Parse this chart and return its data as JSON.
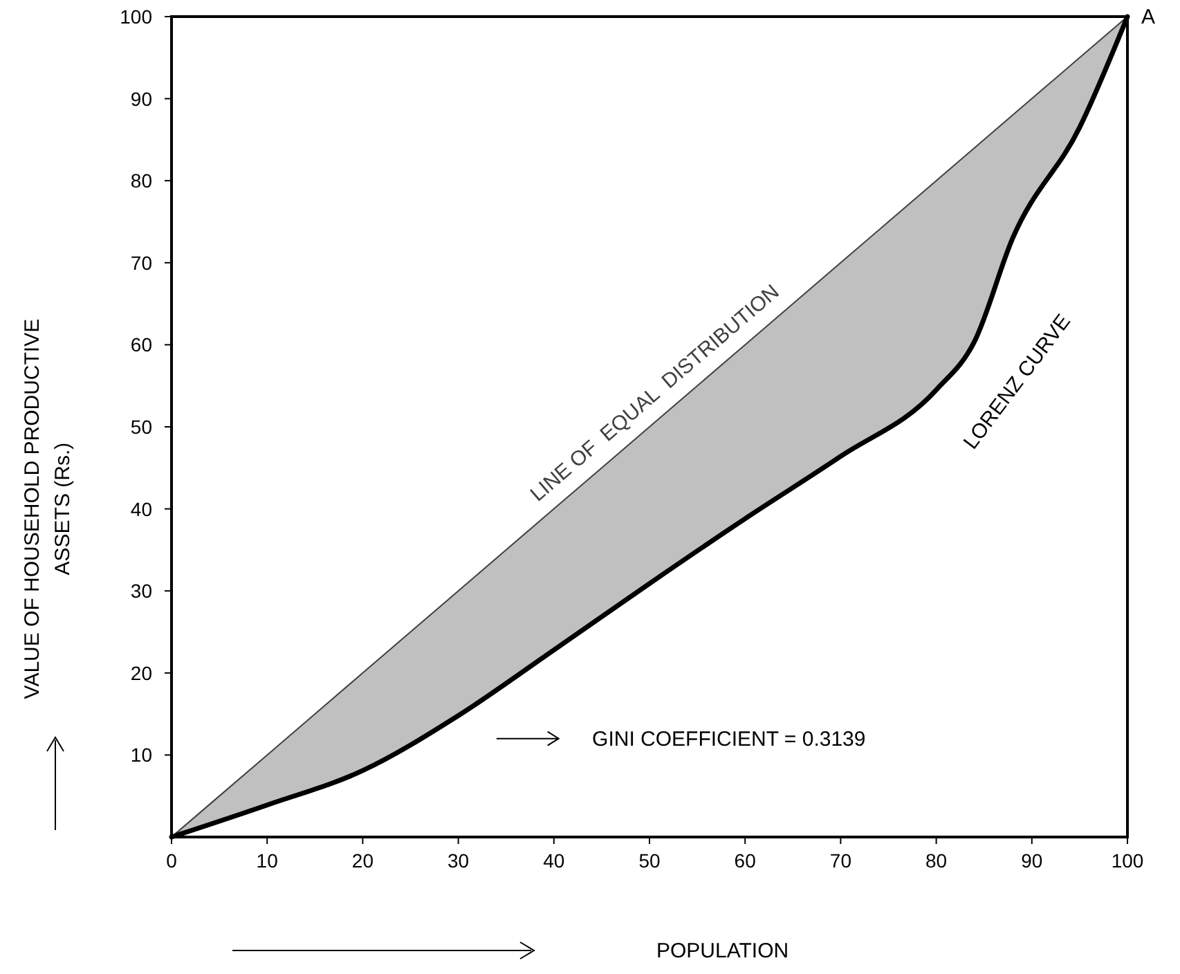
{
  "chart_data": {
    "type": "line",
    "xlabel": "POPULATION",
    "ylabel": "VALUE OF HOUSEHOLD PRODUCTIVE ASSETS (Rs.)",
    "xlim": [
      0,
      100
    ],
    "ylim": [
      0,
      100
    ],
    "xticks": [
      0,
      10,
      20,
      30,
      40,
      50,
      60,
      70,
      80,
      90,
      100
    ],
    "yticks": [
      10,
      20,
      30,
      40,
      50,
      60,
      70,
      80,
      90,
      100
    ],
    "grid": false,
    "marker": "none",
    "line_style": "solid",
    "series": [
      {
        "name": "LINE OF  EQUAL  DISTRIBUTION",
        "color": "#404040",
        "x": [
          0,
          10,
          20,
          30,
          40,
          50,
          60,
          70,
          80,
          84,
          88,
          95,
          100
        ],
        "values": [
          0,
          10,
          20,
          30,
          40,
          50,
          60,
          70,
          80,
          84,
          88,
          95,
          100
        ],
        "lower": [
          0,
          3.9,
          8.1,
          14.8,
          22.8,
          30.9,
          38.8,
          46.4,
          54.5,
          60.4,
          73,
          86.5,
          100
        ],
        "upper": [
          0,
          10,
          20,
          30,
          40,
          50,
          60,
          70,
          80,
          84,
          88,
          95,
          100
        ]
      },
      {
        "name": "LORENZ CURVE",
        "color": "#000000",
        "x": [
          0,
          10,
          20,
          30,
          40,
          50,
          60,
          70,
          80,
          84,
          88,
          95,
          100
        ],
        "values": [
          0,
          3.9,
          8.1,
          14.8,
          22.8,
          30.9,
          38.8,
          46.4,
          54.5,
          60.4,
          73,
          86.5,
          100
        ]
      }
    ],
    "annotations": [
      {
        "text": "A",
        "x": 100,
        "y": 100
      },
      "GINI COEFFICIENT = 0.3139"
    ]
  }
}
